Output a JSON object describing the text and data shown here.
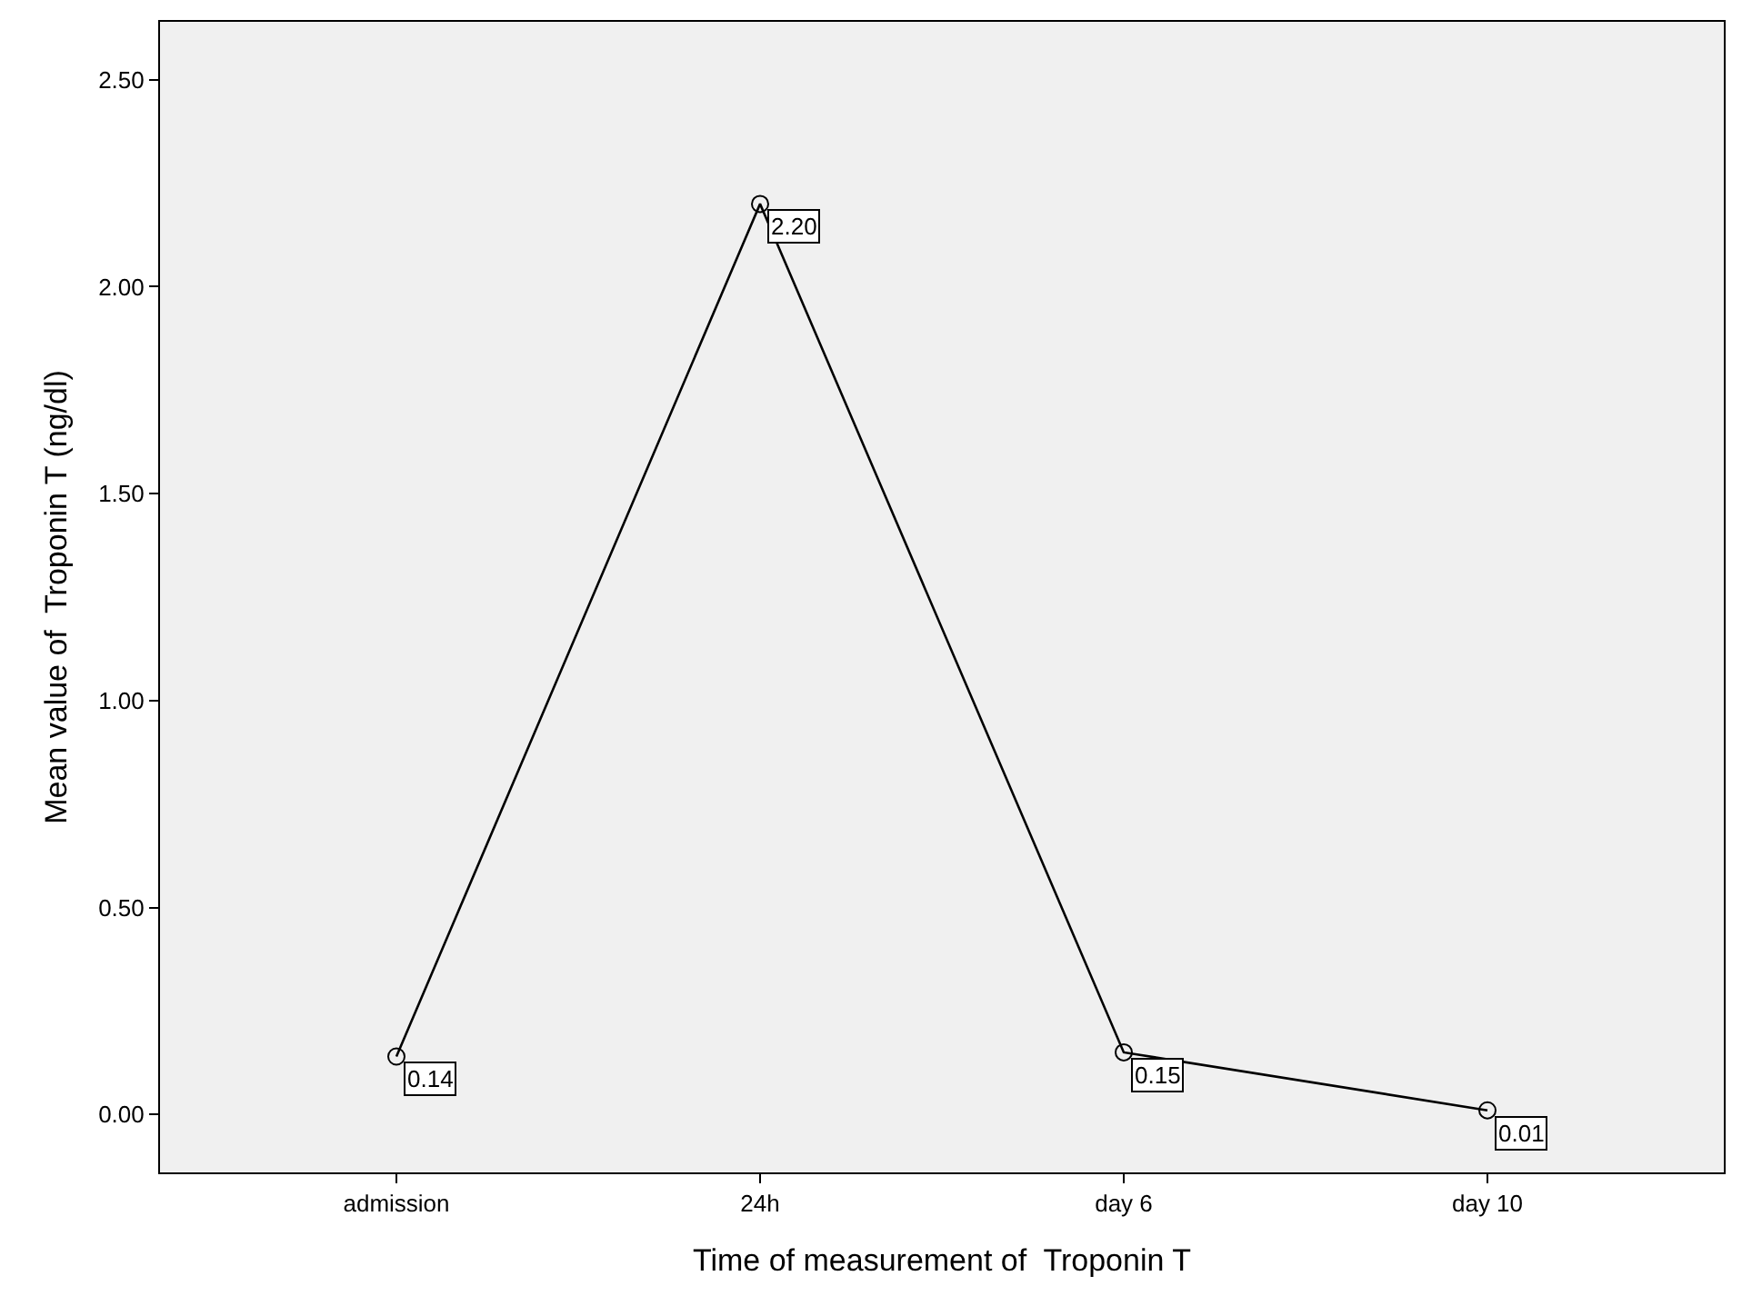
{
  "chart_data": {
    "type": "line",
    "xlabel": "Time of measurement of  Troponin T",
    "ylabel": "Mean value of  Troponin T (ng/dl)",
    "categories": [
      "admission",
      "24h",
      "day 6",
      "day 10"
    ],
    "series": [
      {
        "color": "#000000",
        "values": [
          0.14,
          2.2,
          0.15,
          0.01
        ],
        "value_labels": [
          "0.14",
          "2.20",
          "0.15",
          "0.01"
        ]
      }
    ],
    "ylim": [
      -0.14,
      2.64
    ],
    "yticks": [
      {
        "value": 0,
        "label": "0.00"
      },
      {
        "value": 0.5,
        "label": "0.50"
      },
      {
        "value": 1,
        "label": "1.00"
      },
      {
        "value": 1.5,
        "label": "1.50"
      },
      {
        "value": 2,
        "label": "2.00"
      },
      {
        "value": 2.5,
        "label": "2.50"
      }
    ],
    "grid": false,
    "legend": false,
    "marker": "circle",
    "line_style": "solid"
  }
}
